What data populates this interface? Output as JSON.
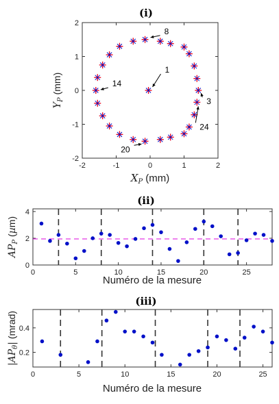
{
  "chart_data": [
    {
      "type": "scatter",
      "panel_label": "(i)",
      "xlabel": "X_P (mm)",
      "ylabel": "Y_P (mm)",
      "xlim": [
        -2,
        2
      ],
      "ylim": [
        -2,
        2
      ],
      "xticks": [
        "-2",
        "-1",
        "0",
        "1",
        "2"
      ],
      "yticks": [
        "-2",
        "-1",
        "0",
        "1",
        "2"
      ],
      "marker": "red plus with blue asterisk",
      "marker_colors": [
        "#e8001c",
        "#0010c8"
      ],
      "points": [
        [
          -0.05,
          0.0
        ],
        [
          -0.15,
          1.5
        ],
        [
          0.3,
          1.45
        ],
        [
          0.6,
          1.38
        ],
        [
          1.0,
          1.28
        ],
        [
          1.15,
          1.08
        ],
        [
          1.3,
          0.72
        ],
        [
          1.38,
          0.35
        ],
        [
          1.42,
          0.0
        ],
        [
          1.38,
          -0.35
        ],
        [
          1.3,
          -0.72
        ],
        [
          1.15,
          -1.08
        ],
        [
          1.0,
          -1.28
        ],
        [
          0.6,
          -1.38
        ],
        [
          0.3,
          -1.45
        ],
        [
          -0.15,
          -1.5
        ],
        [
          -0.5,
          -1.45
        ],
        [
          -0.9,
          -1.3
        ],
        [
          -1.2,
          -1.05
        ],
        [
          -1.4,
          -0.75
        ],
        [
          -1.55,
          -0.38
        ],
        [
          -1.6,
          0.0
        ],
        [
          -1.55,
          0.38
        ],
        [
          -1.4,
          0.75
        ],
        [
          -1.2,
          1.05
        ],
        [
          -0.9,
          1.3
        ],
        [
          -0.5,
          1.45
        ]
      ],
      "annotations": [
        {
          "label": "1",
          "x": -0.05,
          "y": 0.0
        },
        {
          "label": "8",
          "x": -0.15,
          "y": 1.5
        },
        {
          "label": "3",
          "x": 1.42,
          "y": 0.0
        },
        {
          "label": "24",
          "x": 1.38,
          "y": -0.35
        },
        {
          "label": "20",
          "x": -0.15,
          "y": -1.5
        },
        {
          "label": "14",
          "x": -1.6,
          "y": 0.0
        }
      ]
    },
    {
      "type": "scatter",
      "panel_label": "(ii)",
      "xlabel": "Numéro de la mesure",
      "ylabel": "AP_P (µm)",
      "xlim": [
        0,
        28
      ],
      "ylim": [
        0,
        4.2
      ],
      "xticks": [
        "0",
        "5",
        "10",
        "15",
        "20",
        "25"
      ],
      "yticks": [
        "0",
        "2",
        "4"
      ],
      "point_color": "#0010c8",
      "x": [
        1,
        2,
        3,
        4,
        5,
        6,
        7,
        8,
        9,
        10,
        11,
        12,
        13,
        14,
        15,
        16,
        17,
        18,
        19,
        20,
        21,
        22,
        23,
        24,
        25,
        26,
        27,
        28
      ],
      "values": [
        3.1,
        1.8,
        2.25,
        1.6,
        0.5,
        1.05,
        2.0,
        2.35,
        2.25,
        1.65,
        1.4,
        1.95,
        2.75,
        3.0,
        2.45,
        1.2,
        0.3,
        1.7,
        2.7,
        3.25,
        2.9,
        2.15,
        0.8,
        0.9,
        1.85,
        2.35,
        2.25,
        1.8
      ],
      "mean_line": {
        "value": 1.95,
        "color": "#e020e0",
        "style": "dashed"
      },
      "vlines": {
        "x": [
          3,
          8,
          14,
          20,
          24
        ],
        "style": "dashed"
      }
    },
    {
      "type": "scatter",
      "panel_label": "(iii)",
      "xlabel": "Numéro de la mesure",
      "ylabel": "|AP_θ| (mrad)",
      "xlim": [
        0,
        26
      ],
      "ylim": [
        0.08,
        0.55
      ],
      "xticks": [
        "0",
        "5",
        "10",
        "15",
        "20",
        "25"
      ],
      "yticks": [
        "0.2",
        "0.4"
      ],
      "point_color": "#0010c8",
      "x": [
        1,
        3,
        6,
        7,
        8,
        9,
        10,
        11,
        12,
        13,
        14,
        16,
        17,
        18,
        19,
        20,
        21,
        22,
        23,
        24,
        25,
        26
      ],
      "values": [
        0.29,
        0.18,
        0.12,
        0.29,
        0.46,
        0.53,
        0.37,
        0.37,
        0.33,
        0.28,
        0.18,
        0.1,
        0.18,
        0.21,
        0.24,
        0.33,
        0.3,
        0.23,
        0.32,
        0.41,
        0.37,
        0.28
      ],
      "vlines": {
        "x": [
          3,
          7.5,
          13.3,
          19,
          22.5
        ],
        "style": "dashed"
      }
    }
  ]
}
